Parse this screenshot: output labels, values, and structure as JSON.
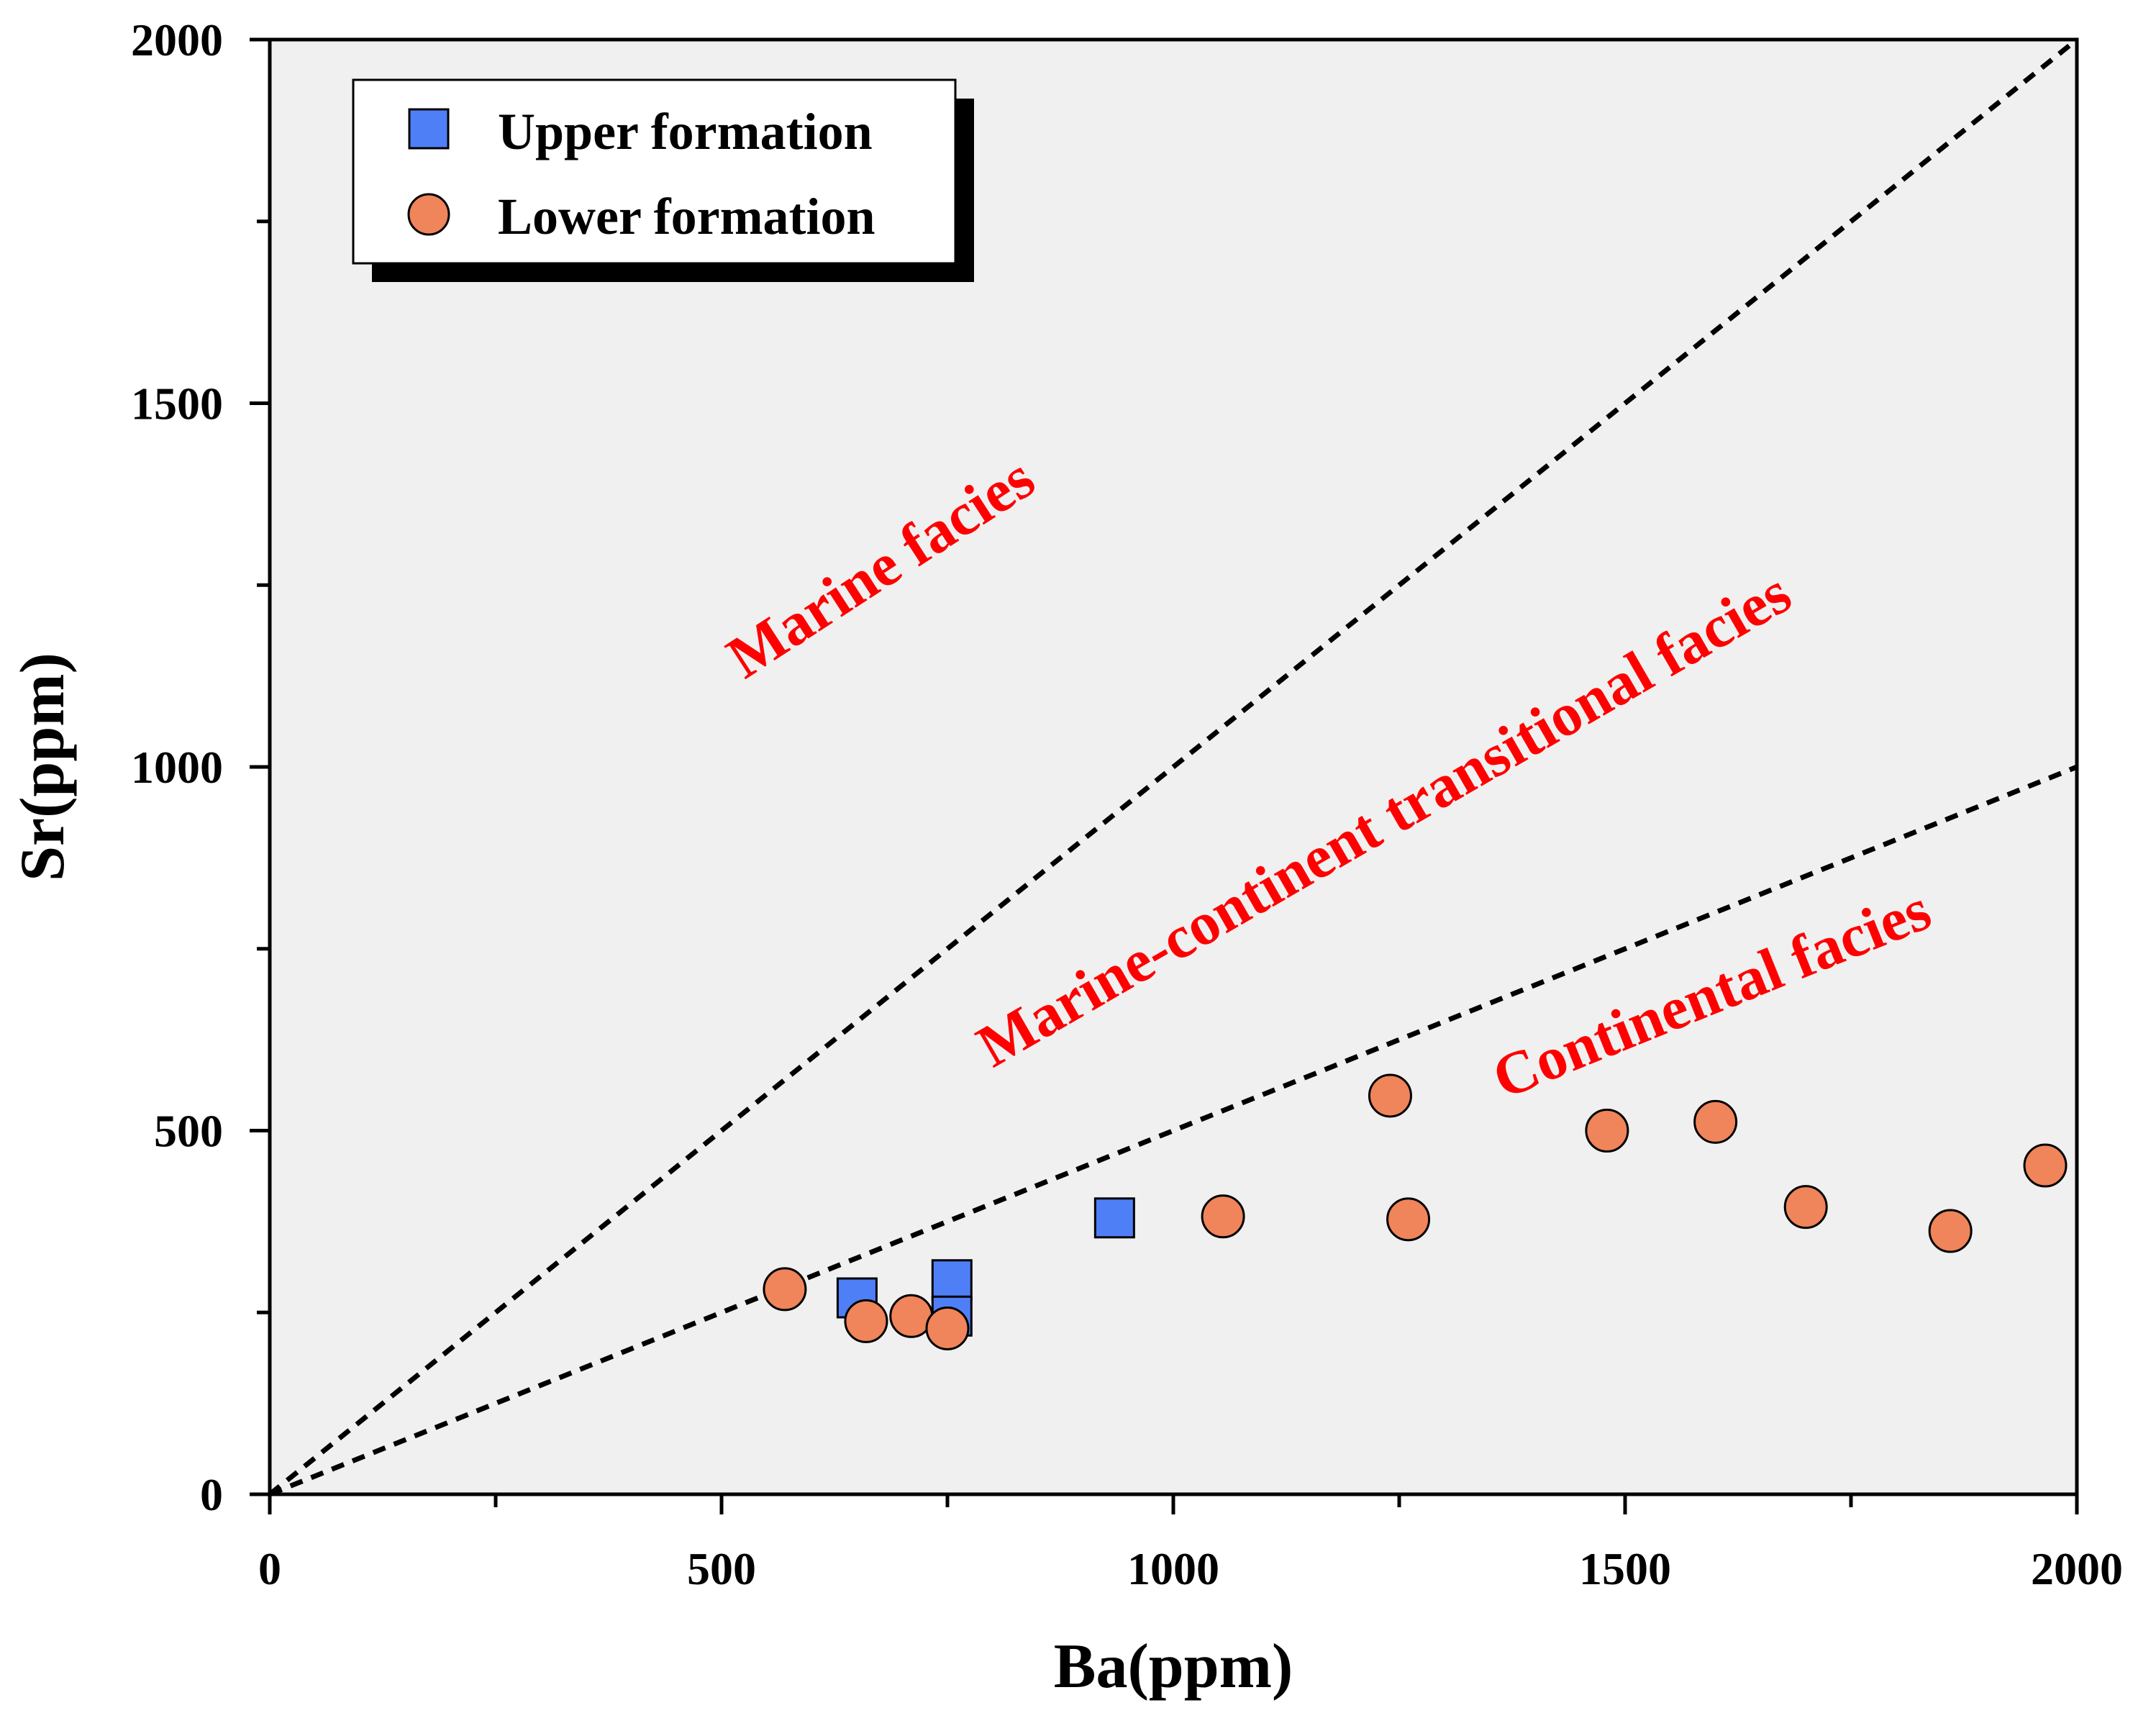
{
  "chart_data": {
    "type": "scatter",
    "title": "",
    "xlabel": "Ba(ppm)",
    "ylabel": "Sr(ppm)",
    "xlim": [
      0,
      2000
    ],
    "ylim": [
      0,
      2000
    ],
    "xticks": [
      0,
      500,
      1000,
      1500,
      2000
    ],
    "yticks": [
      0,
      500,
      1000,
      1500,
      2000
    ],
    "xtick_labels": [
      "0",
      "500",
      "1000",
      "1500",
      "2000"
    ],
    "ytick_labels": [
      "0",
      "500",
      "1000",
      "1500",
      "2000"
    ],
    "x_minor_step": 250,
    "y_minor_step": 250,
    "grid": false,
    "legend_position": "top-left",
    "background_color": "#f0f0f0",
    "series": [
      {
        "name": "Upper formation",
        "marker": "square",
        "color": "#4f7ff7",
        "points": [
          {
            "x": 650,
            "y": 270
          },
          {
            "x": 755,
            "y": 295
          },
          {
            "x": 755,
            "y": 245
          },
          {
            "x": 935,
            "y": 380
          }
        ]
      },
      {
        "name": "Lower formation",
        "marker": "circle",
        "color": "#f0845a",
        "points": [
          {
            "x": 570,
            "y": 282
          },
          {
            "x": 660,
            "y": 238
          },
          {
            "x": 710,
            "y": 245
          },
          {
            "x": 750,
            "y": 228
          },
          {
            "x": 1055,
            "y": 382
          },
          {
            "x": 1240,
            "y": 548
          },
          {
            "x": 1260,
            "y": 378
          },
          {
            "x": 1480,
            "y": 500
          },
          {
            "x": 1600,
            "y": 512
          },
          {
            "x": 1700,
            "y": 395
          },
          {
            "x": 1860,
            "y": 362
          },
          {
            "x": 1965,
            "y": 452
          }
        ]
      }
    ],
    "boundary_lines": [
      {
        "from": [
          0,
          0
        ],
        "to": [
          2000,
          2000
        ],
        "style": "dashed"
      },
      {
        "from": [
          0,
          0
        ],
        "to": [
          2000,
          1000
        ],
        "style": "dashed"
      }
    ],
    "annotations": [
      {
        "text": "Marine facies",
        "color": "#ff0000"
      },
      {
        "text": "Marine-continent transitional facies",
        "color": "#ff0000"
      },
      {
        "text": "Continental facies",
        "color": "#ff0000"
      }
    ]
  }
}
